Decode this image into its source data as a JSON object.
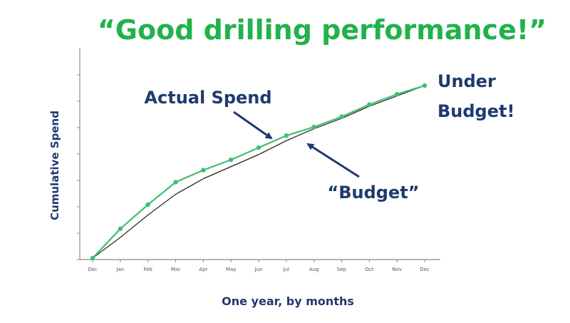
{
  "colors": {
    "title": "#21b24b",
    "annotation": "#1f3a6e",
    "actual_line": "#3fbf73",
    "budget_line": "#333333",
    "axis": "#8a8a8a"
  },
  "chart_data": {
    "type": "line",
    "title": "“Good drilling performance!”",
    "xlabel": "One year, by months",
    "ylabel": "Cumulative Spend",
    "categories": [
      "Dec",
      "Jan",
      "Feb",
      "Mar",
      "Apr",
      "May",
      "Jun",
      "Jul",
      "Aug",
      "Sep",
      "Oct",
      "Nov",
      "Dec"
    ],
    "ylim": [
      0,
      100
    ],
    "grid": false,
    "series": [
      {
        "name": "Actual Spend",
        "values": [
          0,
          17,
          31,
          44,
          51,
          57,
          64,
          71,
          76,
          82,
          89,
          95,
          100
        ],
        "markers": true
      },
      {
        "name": "“Budget”",
        "values": [
          0,
          12,
          25,
          37,
          46,
          53,
          60,
          68,
          75,
          81,
          88,
          94,
          100
        ],
        "markers": false
      }
    ],
    "annotations": {
      "actual": "Actual Spend",
      "budget": "“Budget”",
      "under_line1": "Under",
      "under_line2": "Budget!"
    }
  }
}
